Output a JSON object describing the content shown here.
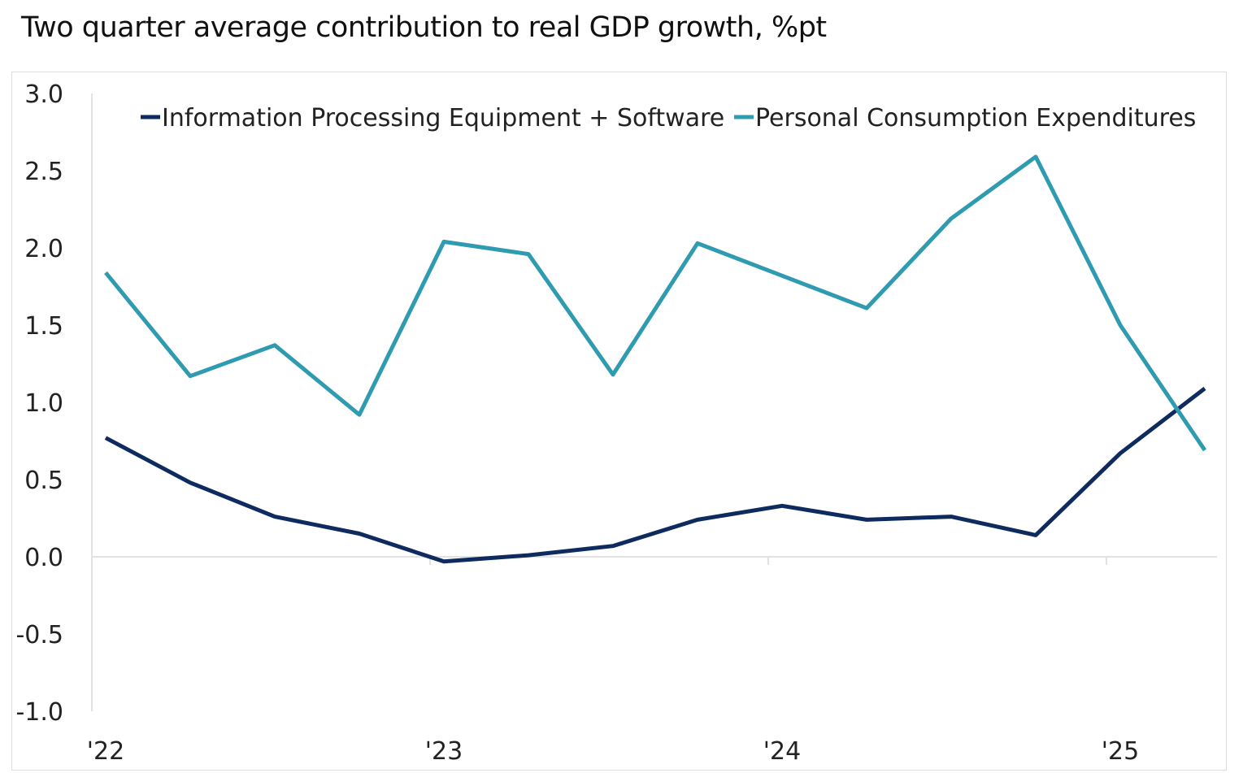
{
  "chart_data": {
    "type": "line",
    "title": "Two quarter average contribution to real GDP growth, %pt",
    "xlabel": "",
    "ylabel": "",
    "ylim": [
      -1.0,
      3.0
    ],
    "yticks": [
      "3.0",
      "2.5",
      "2.0",
      "1.5",
      "1.0",
      "0.5",
      "0.0",
      "-0.5",
      "-1.0"
    ],
    "ytick_values": [
      3.0,
      2.5,
      2.0,
      1.5,
      1.0,
      0.5,
      0.0,
      -0.5,
      -1.0
    ],
    "x": [
      "Q1 2022",
      "Q2 2022",
      "Q3 2022",
      "Q4 2022",
      "Q1 2023",
      "Q2 2023",
      "Q3 2023",
      "Q4 2023",
      "Q1 2024",
      "Q2 2024",
      "Q3 2024",
      "Q4 2024",
      "Q1 2025",
      "Q2 2025"
    ],
    "xtick_labels": [
      {
        "label": "'22",
        "index": 0
      },
      {
        "label": "'23",
        "index": 4
      },
      {
        "label": "'24",
        "index": 8
      },
      {
        "label": "'25",
        "index": 12
      }
    ],
    "grid": false,
    "legend_placement": "top",
    "series": [
      {
        "name": "Information Processing Equipment + Software",
        "color": "#0d2b5e",
        "values": [
          0.77,
          0.48,
          0.26,
          0.15,
          -0.03,
          0.01,
          0.07,
          0.24,
          0.33,
          0.24,
          0.26,
          0.14,
          0.67,
          1.09
        ]
      },
      {
        "name": "Personal Consumption Expenditures",
        "color": "#2f9bb1",
        "values": [
          1.84,
          1.17,
          1.37,
          0.92,
          2.04,
          1.96,
          1.18,
          2.03,
          1.82,
          1.61,
          2.19,
          2.59,
          1.5,
          0.69
        ]
      }
    ]
  }
}
